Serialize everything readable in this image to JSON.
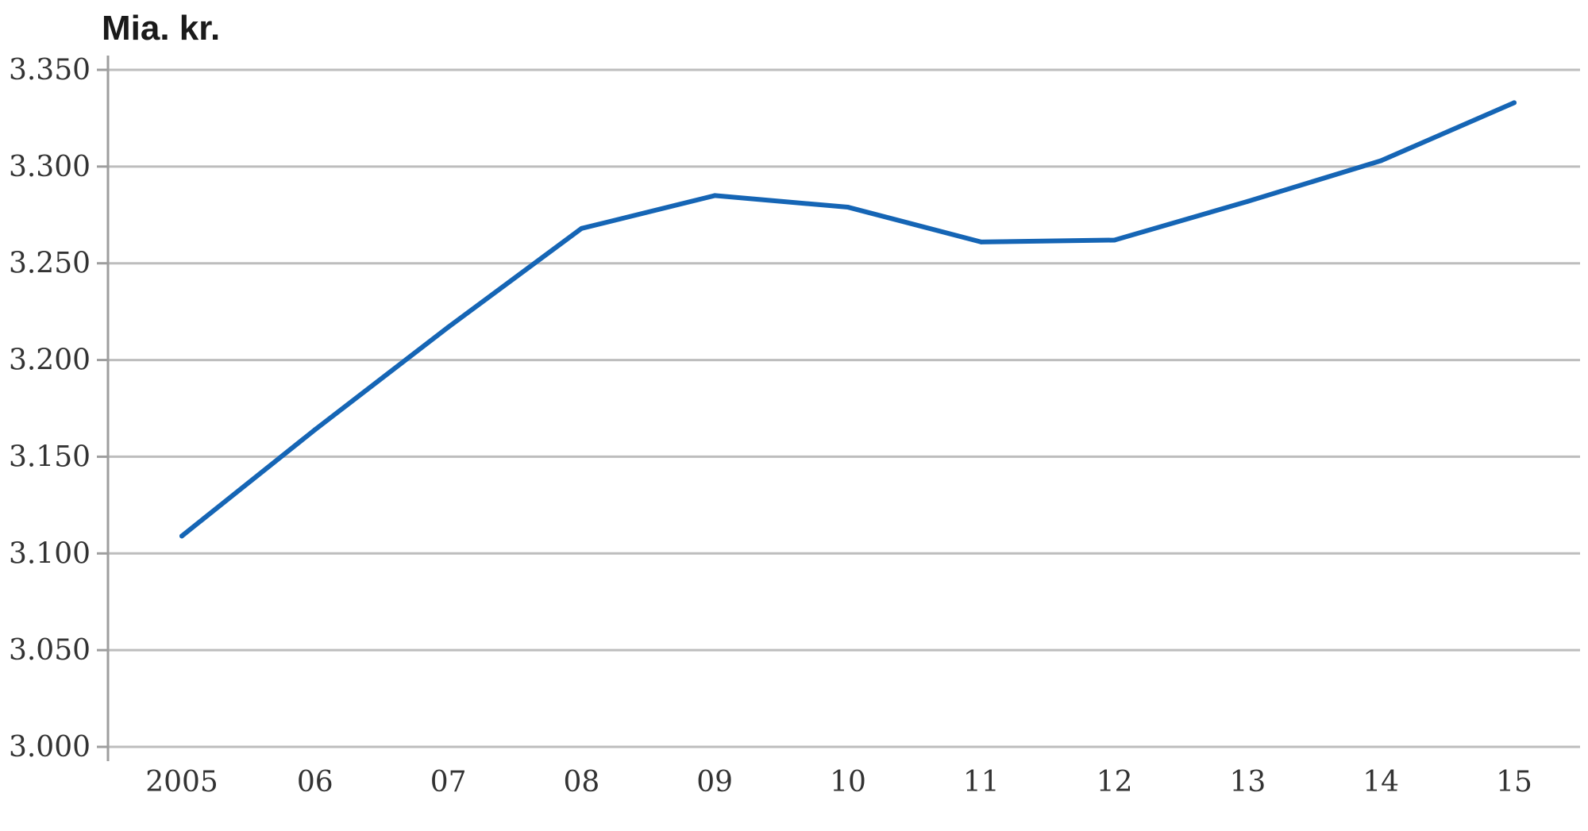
{
  "chart_data": {
    "type": "line",
    "title": "",
    "unit_label": "Mia. kr.",
    "xlabel": "",
    "ylabel": "",
    "categories": [
      "2005",
      "06",
      "07",
      "08",
      "09",
      "10",
      "11",
      "12",
      "13",
      "14",
      "15"
    ],
    "y_tick_labels": [
      "3.000",
      "3.050",
      "3.100",
      "3.150",
      "3.200",
      "3.250",
      "3.300",
      "3.350"
    ],
    "y_ticks": [
      3000,
      3050,
      3100,
      3150,
      3200,
      3250,
      3300,
      3350
    ],
    "ylim": [
      3000,
      3350
    ],
    "grid": true,
    "legend": "none",
    "series": [
      {
        "color": "#1565b5",
        "values": [
          3109,
          3164,
          3217,
          3268,
          3285,
          3279,
          3261,
          3262,
          3282,
          3303,
          3333
        ]
      }
    ]
  }
}
